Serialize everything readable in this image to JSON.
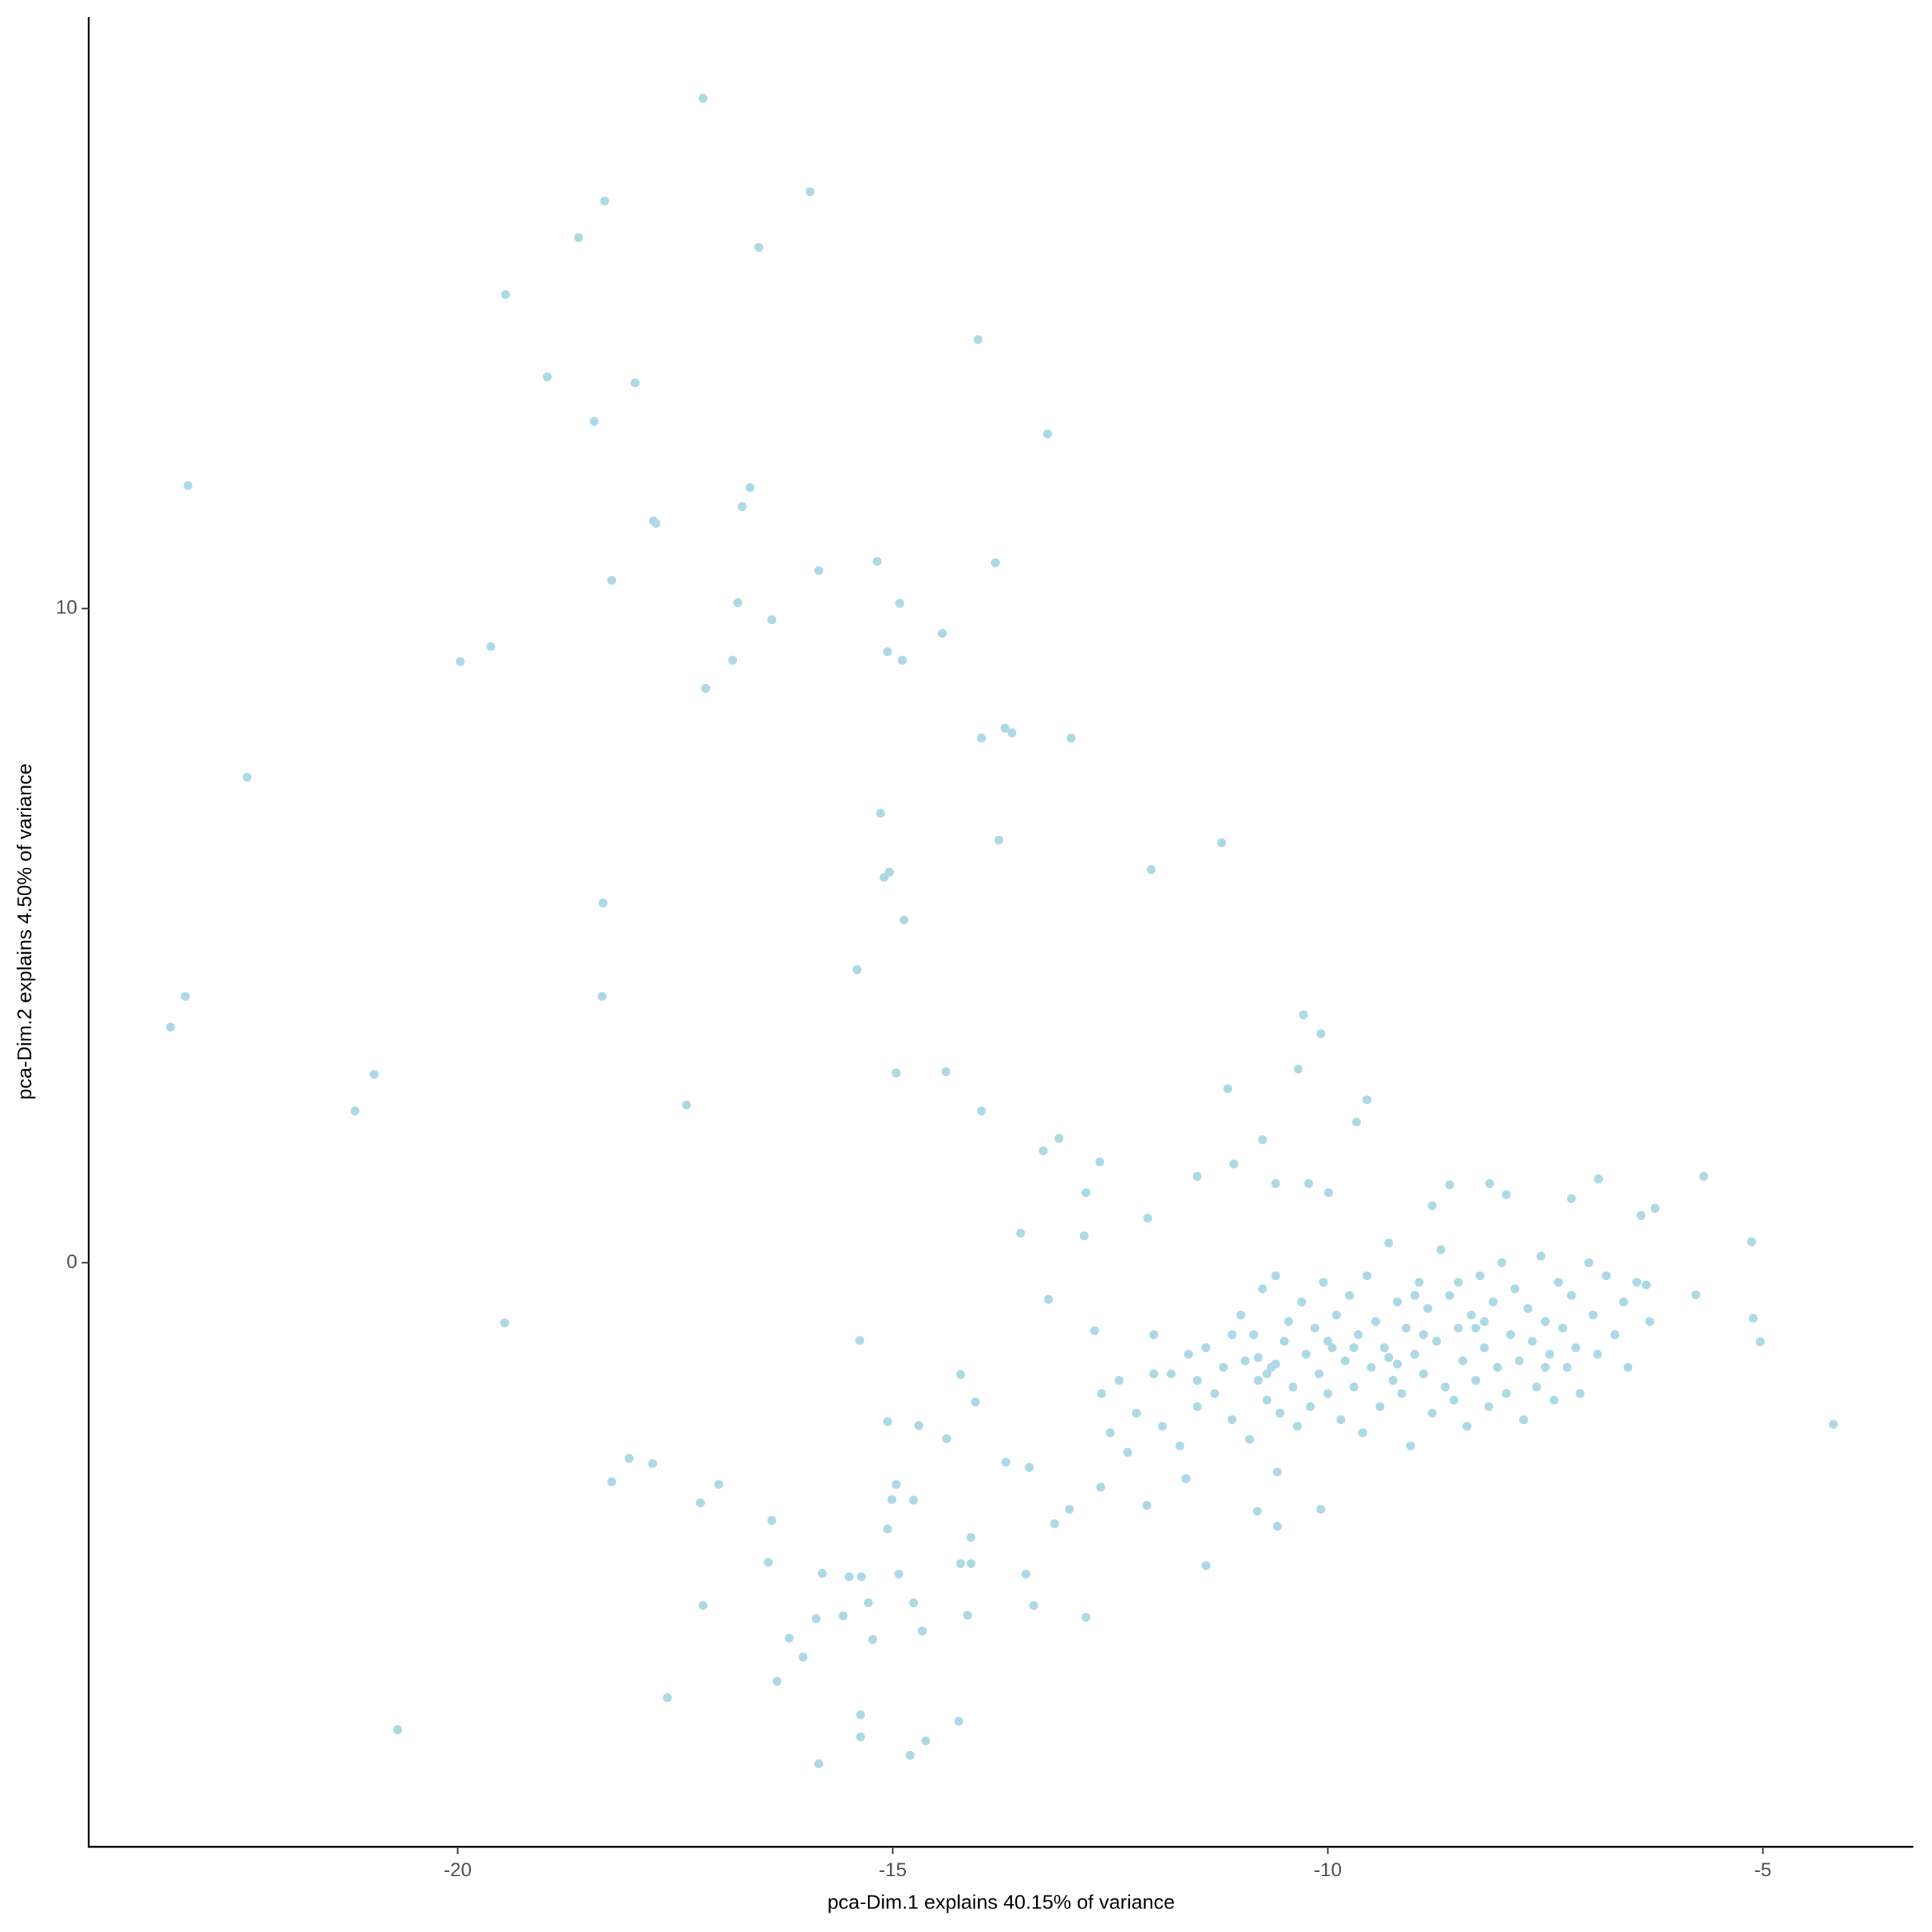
{
  "chart_data": {
    "type": "scatter",
    "xlabel": "pca-Dim.1 explains 40.15% of variance",
    "ylabel": "pca-Dim.2 explains 4.50% of variance",
    "color": "#add8e6",
    "xlim": [
      -24.24,
      -3.27
    ],
    "ylim": [
      -8.93,
      19.04
    ],
    "xticks": [
      -20,
      -15,
      -10,
      -5
    ],
    "yticks": [
      0,
      10
    ],
    "grid": false,
    "x": [
      -17.18,
      -15.95,
      -18.31,
      -18.61,
      -16.54,
      -19.45,
      -14.02,
      -18.97,
      -17.96,
      -18.43,
      -13.22,
      -23.1,
      -16.64,
      -16.73,
      -17.75,
      -17.72,
      -13.82,
      -15.18,
      -15.85,
      -18.23,
      -16.78,
      -14.92,
      -16.39,
      -14.43,
      -19.62,
      -15.06,
      -19.97,
      -16.84,
      -14.89,
      -17.15,
      -13.71,
      -13.63,
      -13.98,
      -12.95,
      -22.42,
      -15.14,
      -13.78,
      -11.22,
      -12.03,
      -15.04,
      -15.1,
      -18.33,
      -14.87,
      -15.41,
      -23.13,
      -18.34,
      -23.3,
      -10.28,
      -10.08,
      -10.34,
      -20.96,
      -14.96,
      -14.39,
      -11.15,
      -9.55,
      -17.37,
      -21.18,
      -13.98,
      -9.67,
      -10.75,
      -13.09,
      -13.27,
      -12.62,
      -11.08,
      -11.5,
      -5.68,
      -10.6,
      -10.22,
      -12.78,
      -9.99,
      -8.6,
      -8.14,
      -6.89,
      -6.24,
      -7.2,
      -7.95,
      -8.8,
      -12.07,
      -13.53,
      -12.8,
      -6.4,
      -5.13,
      -19.46,
      -13.21,
      -6.34,
      -5.77,
      -5.11,
      -5.03,
      -4.19,
      -15.38,
      -12.68,
      -14.22,
      -14.05,
      -15.06,
      -14.7,
      -14.38,
      -18.03,
      -17.76,
      -18.23,
      -17.0,
      -17.21,
      -14.96,
      -15.01,
      -14.76,
      -13.7,
      -13.43,
      -16.39,
      -15.06,
      -14.1,
      -13.14,
      -12.97,
      -12.61,
      -12.08,
      -11.63,
      -10.58,
      -10.81,
      -10.58,
      -10.08,
      -11.4,
      -16.43,
      -15.81,
      -15.5,
      -15.36,
      -14.93,
      -14.22,
      -14.1,
      -13.47,
      -17.18,
      -15.28,
      -14.76,
      -13.38,
      -14.14,
      -15.57,
      -15.88,
      -12.78,
      -14.66,
      -15.23,
      -16.19,
      -16.03,
      -16.33,
      -17.59,
      -15.37,
      -14.24,
      -20.69,
      -15.37,
      -14.62,
      -14.8,
      -15.85,
      -12.6,
      -12.5,
      -12.4,
      -12.3,
      -12.2,
      -12.0,
      -11.9,
      -11.8,
      -11.7,
      -11.6,
      -11.5,
      -11.4,
      -11.3,
      -11.2,
      -11.1,
      -11.0,
      -10.95,
      -10.9,
      -10.85,
      -10.8,
      -10.75,
      -10.7,
      -10.65,
      -10.6,
      -10.55,
      -10.5,
      -10.45,
      -10.4,
      -10.35,
      -10.3,
      -10.25,
      -10.2,
      -10.15,
      -10.1,
      -10.05,
      -10.0,
      -9.95,
      -9.9,
      -9.85,
      -9.8,
      -9.75,
      -9.7,
      -9.65,
      -9.6,
      -9.55,
      -9.5,
      -9.45,
      -9.4,
      -9.35,
      -9.3,
      -9.25,
      -9.2,
      -9.15,
      -9.1,
      -9.05,
      -9.0,
      -8.95,
      -8.9,
      -8.85,
      -8.8,
      -8.75,
      -8.7,
      -8.65,
      -8.6,
      -8.55,
      -8.5,
      -8.45,
      -8.4,
      -8.35,
      -8.3,
      -8.25,
      -8.2,
      -8.15,
      -8.1,
      -8.05,
      -8.0,
      -7.95,
      -7.9,
      -7.85,
      -7.8,
      -7.75,
      -7.7,
      -7.65,
      -7.6,
      -7.55,
      -7.5,
      -7.45,
      -7.4,
      -7.35,
      -7.3,
      -7.25,
      -7.2,
      -7.15,
      -7.1,
      -7.0,
      -6.95,
      -6.9,
      -6.8,
      -6.7,
      -6.6,
      -6.55,
      -6.45,
      -6.3,
      -10.6,
      -10.7,
      -10.8,
      -9.3,
      -9.2,
      -8.2,
      -8.3,
      -9.7,
      -8.9,
      -10.0,
      -9.0,
      -8.5,
      -11.5,
      -11.1,
      -7.5,
      -12.0
    ],
    "values": [
      17.8,
      16.37,
      16.23,
      15.67,
      15.52,
      14.8,
      14.11,
      13.54,
      13.45,
      12.86,
      12.67,
      11.88,
      11.85,
      11.56,
      11.34,
      11.3,
      10.7,
      10.72,
      10.58,
      10.43,
      10.09,
      10.08,
      9.83,
      9.62,
      9.42,
      9.34,
      9.19,
      9.21,
      9.21,
      8.78,
      8.17,
      8.1,
      8.02,
      8.02,
      7.42,
      6.87,
      6.46,
      6.42,
      6.01,
      5.97,
      5.89,
      5.5,
      5.24,
      4.48,
      4.07,
      4.07,
      3.6,
      3.79,
      3.5,
      2.96,
      2.88,
      2.9,
      2.92,
      2.66,
      2.49,
      2.41,
      2.32,
      2.32,
      2.15,
      1.88,
      1.9,
      1.71,
      1.54,
      1.51,
      1.32,
      1.32,
      1.21,
      1.21,
      1.07,
      1.07,
      1.19,
      1.21,
      1.28,
      0.83,
      0.98,
      1.04,
      0.87,
      0.68,
      0.45,
      0.41,
      0.72,
      0.32,
      -0.92,
      -0.56,
      -0.34,
      -0.49,
      -0.85,
      -1.21,
      -2.47,
      -1.19,
      -1.04,
      -1.71,
      -2.13,
      -2.43,
      -2.49,
      -2.69,
      -2.99,
      -3.07,
      -3.35,
      -3.39,
      -3.67,
      -3.39,
      -3.62,
      -3.63,
      -3.05,
      -3.13,
      -3.94,
      -4.07,
      -4.2,
      -3.99,
      -3.77,
      -3.43,
      -3.71,
      -3.3,
      -3.2,
      -3.8,
      -4.03,
      -3.77,
      -4.63,
      -4.58,
      -4.75,
      -4.8,
      -4.8,
      -4.76,
      -4.6,
      -4.6,
      -4.76,
      -5.24,
      -5.2,
      -5.2,
      -5.24,
      -5.39,
      -5.4,
      -5.44,
      -5.42,
      -5.63,
      -5.76,
      -5.74,
      -6.03,
      -6.4,
      -6.65,
      -6.91,
      -7.01,
      -7.14,
      -7.25,
      -7.31,
      -7.53,
      -7.66,
      -2.0,
      -2.6,
      -1.8,
      -2.9,
      -2.3,
      -1.1,
      -2.5,
      -1.7,
      -2.8,
      -1.4,
      -2.2,
      -1.3,
      -2.0,
      -1.6,
      -2.4,
      -0.8,
      -1.5,
      -2.7,
      -1.1,
      -1.8,
      -0.4,
      -2.1,
      -1.6,
      -0.2,
      -2.3,
      -1.2,
      -0.9,
      -1.9,
      -2.5,
      -0.6,
      -1.4,
      -2.2,
      -1.0,
      -1.7,
      -0.3,
      -2.0,
      -1.3,
      -0.8,
      -2.4,
      -1.5,
      -0.5,
      -1.9,
      -1.1,
      -2.6,
      -0.2,
      -1.6,
      -0.9,
      -2.2,
      -1.3,
      0.3,
      -1.8,
      -0.6,
      -2.0,
      -1.0,
      -2.8,
      -1.4,
      -0.3,
      -1.7,
      -0.7,
      -2.3,
      -1.2,
      0.2,
      -1.9,
      -0.5,
      -2.1,
      -1.0,
      -1.5,
      -2.5,
      -0.8,
      -1.8,
      -0.2,
      -1.3,
      -2.2,
      -0.6,
      -1.6,
      0.0,
      -2.0,
      -1.1,
      -0.4,
      -1.5,
      -2.4,
      -0.7,
      -1.2,
      -1.9,
      0.1,
      -0.9,
      -1.4,
      -2.1,
      -0.3,
      -1.0,
      -1.6,
      -0.5,
      -1.3,
      -2.0,
      0.0,
      -0.8,
      -1.4,
      -0.2,
      -1.1,
      -0.6,
      -1.6,
      -0.3,
      -0.9,
      -1.55,
      -1.7,
      -1.45,
      -1.45,
      -1.55,
      -0.9,
      -1.0,
      -1.3,
      -1.1,
      -1.2,
      -0.5,
      -0.3,
      -1.8,
      -1.1,
      -1.6,
      -1.7
    ]
  }
}
